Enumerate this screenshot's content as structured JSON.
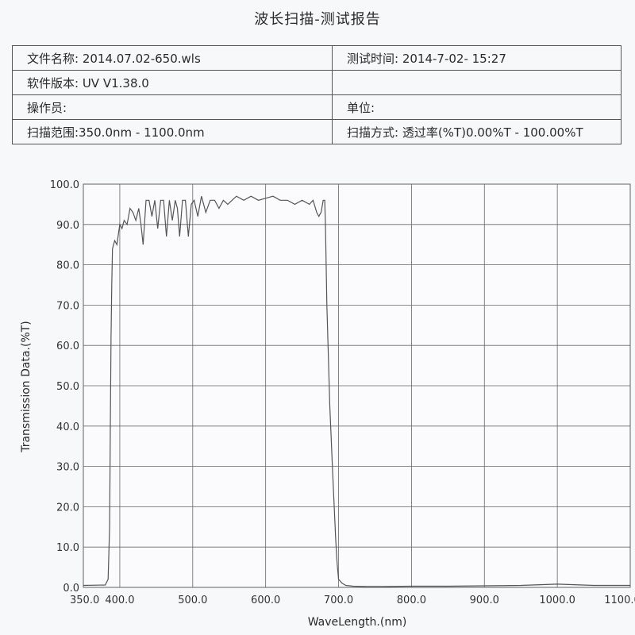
{
  "report": {
    "title": "波长扫描-测试报告",
    "file_name": "文件名称: 2014.07.02-650.wls",
    "test_time": "测试时间: 2014-7-02- 15:27",
    "software_version": "软件版本: UV V1.38.0",
    "operator": "操作员:",
    "unit": "单位:",
    "scan_range": "扫描范围:350.0nm - 1100.0nm",
    "scan_mode": "扫描方式: 透过率(%T)0.00%T - 100.00%T"
  },
  "chart_data": {
    "type": "line",
    "xlabel": "WaveLength.(nm)",
    "ylabel": "Transmission Data.(%T)",
    "xlim": [
      350,
      1100
    ],
    "ylim": [
      0,
      100
    ],
    "grid": true,
    "xticks": [
      350,
      400,
      500,
      600,
      700,
      800,
      900,
      1000,
      1100
    ],
    "xtick_labels": [
      "350.0",
      "400.0",
      "500.0",
      "600.0",
      "700.0",
      "800.0",
      "900.0",
      "1000.0",
      "1100.0"
    ],
    "yticks": [
      0,
      10,
      20,
      30,
      40,
      50,
      60,
      70,
      80,
      90,
      100
    ],
    "ytick_labels": [
      "0.0",
      "10.0",
      "20.0",
      "30.0",
      "40.0",
      "50.0",
      "60.0",
      "70.0",
      "80.0",
      "90.0",
      "100.0"
    ],
    "series": [
      {
        "color": "#555555",
        "x": [
          350,
          380,
          384,
          386,
          387,
          388,
          389,
          390,
          393,
          396,
          400,
          403,
          406,
          410,
          414,
          418,
          422,
          426,
          429,
          432,
          436,
          440,
          444,
          448,
          452,
          456,
          460,
          464,
          468,
          472,
          476,
          479,
          482,
          486,
          490,
          494,
          498,
          502,
          507,
          512,
          518,
          524,
          530,
          536,
          542,
          548,
          554,
          560,
          570,
          580,
          590,
          600,
          610,
          620,
          630,
          640,
          650,
          660,
          665,
          670,
          673,
          676,
          679,
          681,
          682,
          684,
          688,
          692,
          696,
          698,
          700,
          705,
          710,
          720,
          740,
          760,
          800,
          850,
          900,
          950,
          1000,
          1050,
          1100
        ],
        "y": [
          0.5,
          0.6,
          2,
          15,
          40,
          62,
          75,
          84,
          86,
          85,
          90,
          89,
          91,
          90,
          94,
          93,
          91,
          94,
          90,
          85,
          96,
          96,
          92,
          96,
          89,
          96,
          96,
          87,
          96,
          91,
          96,
          94,
          87,
          96,
          96,
          87,
          95,
          96,
          92,
          97,
          93,
          96,
          96,
          94,
          96,
          95,
          96,
          97,
          96,
          97,
          96,
          96.5,
          97,
          96,
          96,
          95,
          96,
          95,
          96,
          93,
          92,
          93,
          96,
          96,
          90,
          70,
          45,
          28,
          12,
          6,
          2,
          1,
          0.5,
          0.3,
          0.2,
          0.2,
          0.3,
          0.3,
          0.4,
          0.5,
          0.8,
          0.5,
          0.5
        ]
      }
    ]
  }
}
